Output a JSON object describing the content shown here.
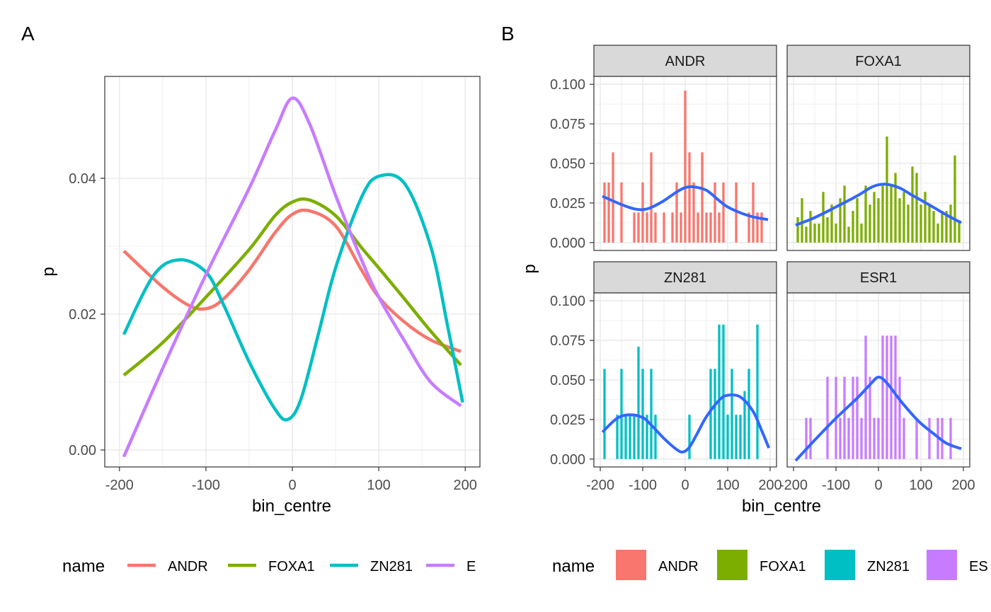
{
  "panels": {
    "a_tag": "A",
    "b_tag": "B"
  },
  "colors": {
    "ANDR": "#F8766D",
    "FOXA1": "#7CAE00",
    "ZN281": "#00BFC4",
    "ESR1": "#C77CFF",
    "smooth": "#3366FF",
    "strip_fill": "#D9D9D9",
    "grid": "#EBEBEB",
    "axis_text": "#4D4D4D"
  },
  "chart_data": [
    {
      "type": "line",
      "panel": "A",
      "xlabel": "bin_centre",
      "ylabel": "p",
      "xlim": [
        -217,
        217
      ],
      "ylim": [
        -0.0025,
        0.055
      ],
      "xticks": [
        -200,
        -100,
        0,
        100,
        200
      ],
      "yticks": [
        0.0,
        0.02,
        0.04
      ],
      "ytick_labels": [
        "0.00",
        "0.02",
        "0.04"
      ],
      "grid": true,
      "legend": {
        "position": "bottom",
        "title": "name",
        "entries": [
          "ANDR",
          "FOXA1",
          "ZN281",
          "E"
        ]
      },
      "series": [
        {
          "name": "ANDR",
          "x": [
            -195,
            -150,
            -120,
            -100,
            -80,
            -50,
            -20,
            0,
            20,
            50,
            80,
            100,
            130,
            160,
            195
          ],
          "y": [
            0.0293,
            0.024,
            0.0213,
            0.0208,
            0.0222,
            0.0265,
            0.032,
            0.0347,
            0.0352,
            0.033,
            0.0265,
            0.0225,
            0.0188,
            0.0162,
            0.0145
          ]
        },
        {
          "name": "FOXA1",
          "x": [
            -195,
            -150,
            -100,
            -50,
            -20,
            0,
            20,
            50,
            80,
            100,
            130,
            160,
            195
          ],
          "y": [
            0.011,
            0.0158,
            0.0225,
            0.0295,
            0.0345,
            0.0365,
            0.0368,
            0.0345,
            0.0298,
            0.0268,
            0.0222,
            0.0175,
            0.0125
          ]
        },
        {
          "name": "ZN281",
          "x": [
            -195,
            -160,
            -130,
            -100,
            -80,
            -50,
            -20,
            -5,
            10,
            30,
            50,
            80,
            100,
            130,
            160,
            180,
            197
          ],
          "y": [
            0.017,
            0.0258,
            0.028,
            0.0262,
            0.0215,
            0.013,
            0.006,
            0.0045,
            0.0075,
            0.017,
            0.0268,
            0.0372,
            0.0403,
            0.0392,
            0.03,
            0.018,
            0.007
          ]
        },
        {
          "name": "E",
          "x": [
            -195,
            -150,
            -100,
            -50,
            -20,
            0,
            20,
            50,
            80,
            100,
            130,
            160,
            195
          ],
          "y": [
            -0.001,
            0.012,
            0.0258,
            0.0385,
            0.047,
            0.0518,
            0.048,
            0.0375,
            0.028,
            0.0225,
            0.016,
            0.01,
            0.0065
          ]
        }
      ]
    },
    {
      "type": "bar",
      "panel": "B",
      "xlabel": "bin_centre",
      "ylabel": "p",
      "xlim": [
        -215,
        215
      ],
      "ylim": [
        -0.005,
        0.105
      ],
      "xticks": [
        -200,
        -100,
        0,
        100,
        200
      ],
      "yticks": [
        0.0,
        0.025,
        0.05,
        0.075,
        0.1
      ],
      "ytick_labels": [
        "0.000",
        "0.025",
        "0.050",
        "0.075",
        "0.100"
      ],
      "grid": true,
      "bin_centres": [
        -190,
        -180,
        -170,
        -160,
        -150,
        -140,
        -130,
        -120,
        -110,
        -100,
        -90,
        -80,
        -70,
        -60,
        -50,
        -40,
        -30,
        -20,
        -10,
        0,
        10,
        20,
        30,
        40,
        50,
        60,
        70,
        80,
        90,
        100,
        110,
        120,
        130,
        140,
        150,
        160,
        170,
        180,
        190
      ],
      "legend": {
        "position": "bottom",
        "title": "name",
        "entries": [
          "ANDR",
          "FOXA1",
          "ZN281",
          "ES"
        ]
      },
      "facets": [
        {
          "name": "ANDR",
          "values": [
            0.038,
            0.038,
            0.057,
            0,
            0.038,
            0,
            0,
            0.019,
            0.019,
            0.038,
            0.019,
            0.057,
            0.019,
            0,
            0.019,
            0,
            0.019,
            0.038,
            0.019,
            0.096,
            0.057,
            0.038,
            0.019,
            0.057,
            0.019,
            0.019,
            0.038,
            0.019,
            0.038,
            0,
            0,
            0.038,
            0,
            0,
            0.019,
            0.038,
            0.019,
            0.019,
            0
          ],
          "smooth_x": [
            -195,
            -150,
            -120,
            -100,
            -80,
            -50,
            -20,
            0,
            20,
            50,
            80,
            100,
            130,
            160,
            195
          ],
          "smooth_y": [
            0.0293,
            0.024,
            0.0213,
            0.0208,
            0.0222,
            0.0265,
            0.032,
            0.0347,
            0.0352,
            0.033,
            0.0265,
            0.0225,
            0.0188,
            0.0162,
            0.0145
          ]
        },
        {
          "name": "FOXA1",
          "values": [
            0.016,
            0.028,
            0.01,
            0.02,
            0.012,
            0.012,
            0.032,
            0.016,
            0.024,
            0.012,
            0.028,
            0.036,
            0.01,
            0.02,
            0.028,
            0.012,
            0.036,
            0.024,
            0.032,
            0.028,
            0.036,
            0.067,
            0.036,
            0.044,
            0.028,
            0.032,
            0.024,
            0.048,
            0.044,
            0.024,
            0.032,
            0.024,
            0.02,
            0.012,
            0.02,
            0.02,
            0.024,
            0.055,
            0.014
          ],
          "smooth_x": [
            -195,
            -150,
            -100,
            -50,
            -20,
            0,
            20,
            50,
            80,
            100,
            130,
            160,
            195
          ],
          "smooth_y": [
            0.011,
            0.0158,
            0.0225,
            0.0295,
            0.0345,
            0.0365,
            0.0368,
            0.0345,
            0.0298,
            0.0268,
            0.0222,
            0.0175,
            0.0125
          ]
        },
        {
          "name": "ZN281",
          "values": [
            0.057,
            0,
            0,
            0.028,
            0.057,
            0.028,
            0.028,
            0.028,
            0.071,
            0.057,
            0.028,
            0.057,
            0.028,
            0,
            0,
            0,
            0,
            0,
            0,
            0,
            0.028,
            0,
            0,
            0,
            0,
            0.057,
            0.057,
            0.085,
            0.085,
            0.028,
            0.057,
            0.028,
            0.028,
            0.043,
            0.057,
            0,
            0.085,
            0,
            0
          ],
          "smooth_x": [
            -195,
            -160,
            -130,
            -100,
            -80,
            -50,
            -20,
            -5,
            10,
            30,
            50,
            80,
            100,
            130,
            160,
            180,
            197
          ],
          "smooth_y": [
            0.017,
            0.0258,
            0.028,
            0.0262,
            0.0215,
            0.013,
            0.006,
            0.0045,
            0.0075,
            0.017,
            0.0268,
            0.0372,
            0.0403,
            0.0392,
            0.03,
            0.018,
            0.007
          ]
        },
        {
          "name": "ESR1",
          "values": [
            0,
            0,
            0.026,
            0.026,
            0,
            0,
            0,
            0.052,
            0,
            0.052,
            0.026,
            0.052,
            0.026,
            0.052,
            0.052,
            0.026,
            0.078,
            0.052,
            0.026,
            0.026,
            0.078,
            0.078,
            0.078,
            0.078,
            0.052,
            0.026,
            0,
            0,
            0.026,
            0,
            0,
            0.026,
            0,
            0.026,
            0.026,
            0,
            0.026,
            0,
            0
          ],
          "smooth_x": [
            -195,
            -150,
            -100,
            -50,
            -20,
            0,
            20,
            50,
            80,
            100,
            130,
            160,
            195
          ],
          "smooth_y": [
            -0.001,
            0.012,
            0.0258,
            0.0385,
            0.047,
            0.0518,
            0.048,
            0.0375,
            0.028,
            0.0225,
            0.016,
            0.01,
            0.0065
          ]
        }
      ]
    }
  ]
}
